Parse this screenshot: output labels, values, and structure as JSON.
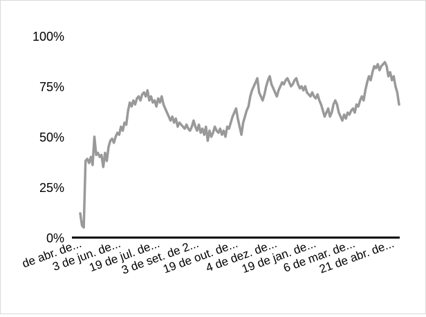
{
  "chart_data": {
    "type": "line",
    "title": "",
    "xlabel": "",
    "ylabel": "",
    "ylim": [
      0,
      1
    ],
    "y_ticks": [
      "0%",
      "25%",
      "50%",
      "75%",
      "100%"
    ],
    "x_tick_labels": [
      "de abr. de...",
      "3 de jun. de...",
      "19 de jul. de...",
      "3 de set. de 2...",
      "19 de out. de...",
      "4 de dez. de...",
      "19 de jan. de...",
      "6 de mar. de...",
      "21 de abr. de..."
    ],
    "grid": false,
    "legend": "none",
    "series_color": "#999999",
    "axis_color": "#000000",
    "series": [
      {
        "values": [
          0.12,
          0.06,
          0.05,
          0.38,
          0.39,
          0.37,
          0.4,
          0.36,
          0.5,
          0.41,
          0.42,
          0.4,
          0.41,
          0.35,
          0.42,
          0.38,
          0.45,
          0.48,
          0.49,
          0.47,
          0.5,
          0.52,
          0.51,
          0.55,
          0.53,
          0.57,
          0.56,
          0.63,
          0.67,
          0.65,
          0.68,
          0.66,
          0.69,
          0.7,
          0.68,
          0.71,
          0.72,
          0.7,
          0.73,
          0.68,
          0.7,
          0.67,
          0.68,
          0.65,
          0.69,
          0.67,
          0.7,
          0.66,
          0.64,
          0.62,
          0.6,
          0.58,
          0.6,
          0.57,
          0.59,
          0.55,
          0.57,
          0.56,
          0.55,
          0.54,
          0.56,
          0.54,
          0.53,
          0.55,
          0.58,
          0.55,
          0.53,
          0.56,
          0.52,
          0.54,
          0.51,
          0.55,
          0.48,
          0.53,
          0.5,
          0.52,
          0.55,
          0.53,
          0.52,
          0.54,
          0.51,
          0.53,
          0.5,
          0.55,
          0.54,
          0.57,
          0.6,
          0.62,
          0.64,
          0.59,
          0.55,
          0.51,
          0.57,
          0.6,
          0.63,
          0.65,
          0.7,
          0.73,
          0.75,
          0.77,
          0.79,
          0.72,
          0.7,
          0.68,
          0.71,
          0.75,
          0.78,
          0.8,
          0.76,
          0.74,
          0.72,
          0.7,
          0.73,
          0.75,
          0.77,
          0.76,
          0.78,
          0.79,
          0.77,
          0.75,
          0.76,
          0.78,
          0.79,
          0.76,
          0.74,
          0.75,
          0.73,
          0.75,
          0.72,
          0.71,
          0.7,
          0.72,
          0.7,
          0.69,
          0.71,
          0.68,
          0.66,
          0.63,
          0.6,
          0.62,
          0.64,
          0.6,
          0.62,
          0.66,
          0.68,
          0.66,
          0.62,
          0.6,
          0.58,
          0.61,
          0.59,
          0.62,
          0.61,
          0.63,
          0.64,
          0.62,
          0.66,
          0.65,
          0.68,
          0.7,
          0.68,
          0.73,
          0.77,
          0.8,
          0.78,
          0.82,
          0.85,
          0.84,
          0.86,
          0.83,
          0.85,
          0.86,
          0.87,
          0.85,
          0.8,
          0.82,
          0.78,
          0.8,
          0.75,
          0.72,
          0.66
        ]
      }
    ]
  }
}
